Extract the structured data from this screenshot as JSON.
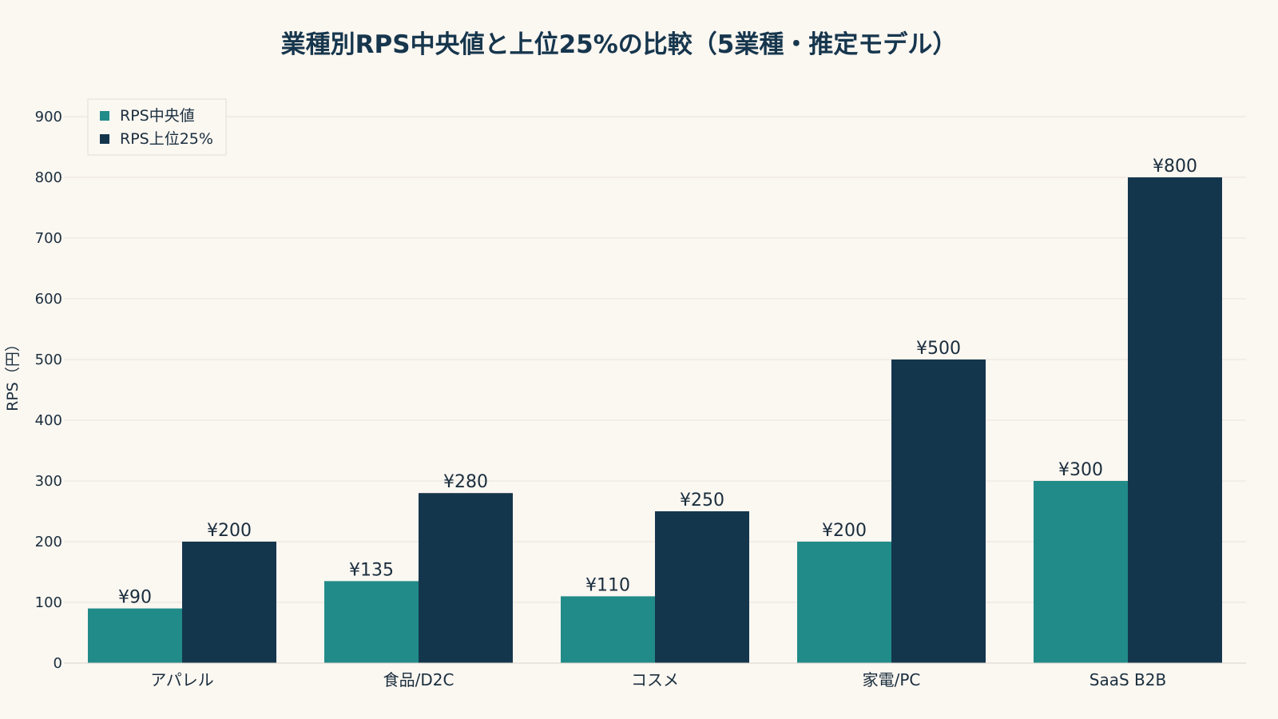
{
  "colors": {
    "background": "#fbf7f1",
    "median": "#218b89",
    "top25": "#14364d",
    "text": "#1a2e3e",
    "grid": "#e8e3dc"
  },
  "chart_data": {
    "type": "bar",
    "title": "業種別RPS中央値と上位25%の比較（5業種・推定モデル）",
    "xlabel": "",
    "ylabel": "RPS（円）",
    "ylim": [
      0,
      900
    ],
    "yticks": [
      0,
      100,
      200,
      300,
      400,
      500,
      600,
      700,
      800,
      900
    ],
    "grid": true,
    "legend_position": "top-left",
    "categories": [
      "アパレル",
      "食品/D2C",
      "コスメ",
      "家電/PC",
      "SaaS B2B"
    ],
    "series": [
      {
        "name": "RPS中央値",
        "color": "#218b89",
        "values": [
          90,
          135,
          110,
          200,
          300
        ],
        "labels": [
          "¥90",
          "¥135",
          "¥110",
          "¥200",
          "¥300"
        ]
      },
      {
        "name": "RPS上位25%",
        "color": "#14364d",
        "values": [
          200,
          280,
          250,
          500,
          800
        ],
        "labels": [
          "¥200",
          "¥280",
          "¥250",
          "¥500",
          "¥800"
        ]
      }
    ]
  }
}
